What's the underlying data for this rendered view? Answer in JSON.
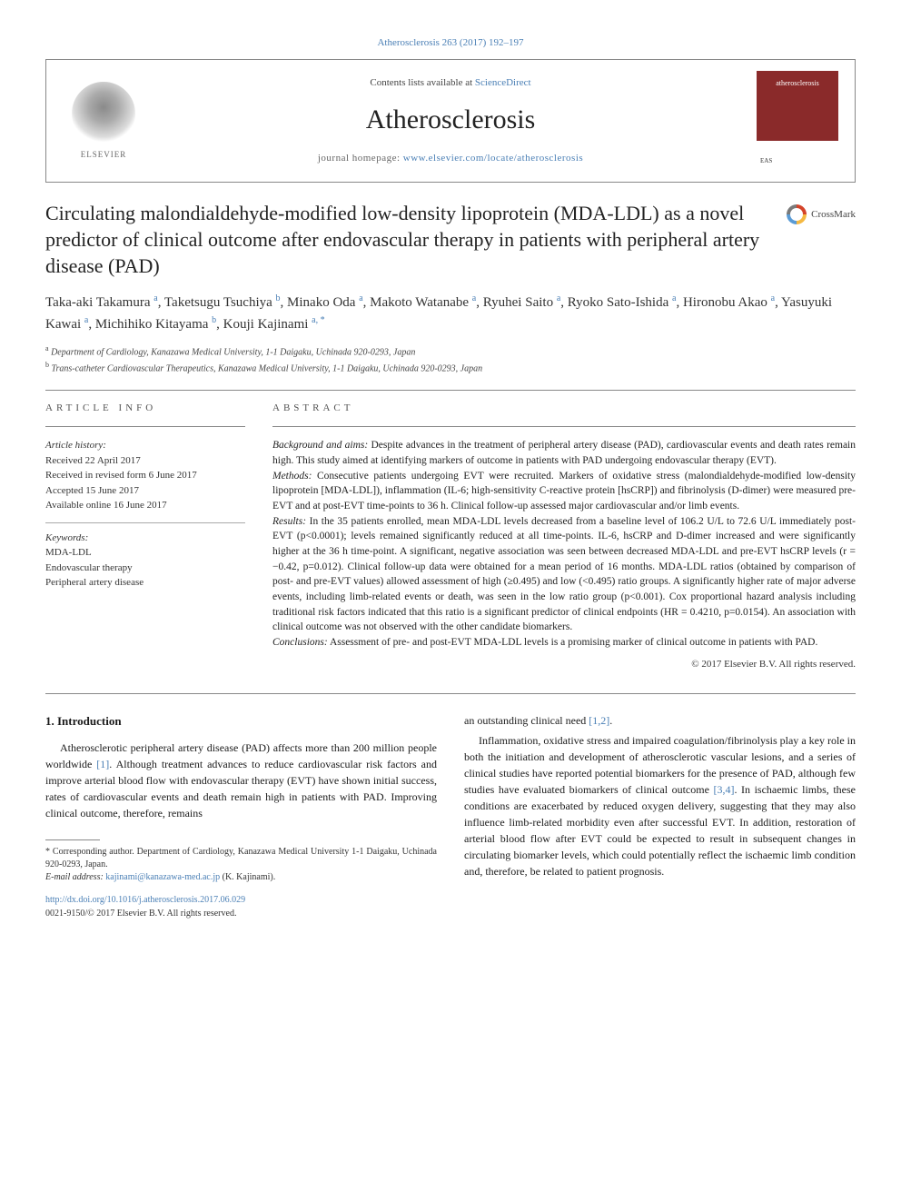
{
  "citation": {
    "text": "Atherosclerosis 263 (2017) 192–197",
    "color": "#4a7fb5"
  },
  "header": {
    "contents_prefix": "Contents lists available at ",
    "contents_link": "ScienceDirect",
    "journal": "Atherosclerosis",
    "homepage_prefix": "journal homepage: ",
    "homepage_link": "www.elsevier.com/locate/atherosclerosis",
    "publisher": "ELSEVIER",
    "cover_title": "atherosclerosis",
    "cover_footer": "EAS"
  },
  "crossmark": "CrossMark",
  "title": "Circulating malondialdehyde-modified low-density lipoprotein (MDA-LDL) as a novel predictor of clinical outcome after endovascular therapy in patients with peripheral artery disease (PAD)",
  "authors_html": "Taka-aki Takamura <sup>a</sup>, Taketsugu Tsuchiya <sup>b</sup>, Minako Oda <sup>a</sup>, Makoto Watanabe <sup>a</sup>, Ryuhei Saito <sup>a</sup>, Ryoko Sato-Ishida <sup>a</sup>, Hironobu Akao <sup>a</sup>, Yasuyuki Kawai <sup>a</sup>, Michihiko Kitayama <sup>b</sup>, Kouji Kajinami <sup>a, *</sup>",
  "affiliations": {
    "a": "Department of Cardiology, Kanazawa Medical University, 1-1 Daigaku, Uchinada 920-0293, Japan",
    "b": "Trans-catheter Cardiovascular Therapeutics, Kanazawa Medical University, 1-1 Daigaku, Uchinada 920-0293, Japan"
  },
  "article_info": {
    "label": "ARTICLE INFO",
    "history_heading": "Article history:",
    "received": "Received 22 April 2017",
    "revised": "Received in revised form 6 June 2017",
    "accepted": "Accepted 15 June 2017",
    "online": "Available online 16 June 2017",
    "keywords_heading": "Keywords:",
    "keywords": [
      "MDA-LDL",
      "Endovascular therapy",
      "Peripheral artery disease"
    ]
  },
  "abstract": {
    "label": "ABSTRACT",
    "background_head": "Background and aims:",
    "background": " Despite advances in the treatment of peripheral artery disease (PAD), cardiovascular events and death rates remain high. This study aimed at identifying markers of outcome in patients with PAD undergoing endovascular therapy (EVT).",
    "methods_head": "Methods:",
    "methods": " Consecutive patients undergoing EVT were recruited. Markers of oxidative stress (malondialdehyde-modified low-density lipoprotein [MDA-LDL]), inflammation (IL-6; high-sensitivity C-reactive protein [hsCRP]) and fibrinolysis (D-dimer) were measured pre-EVT and at post-EVT time-points to 36 h. Clinical follow-up assessed major cardiovascular and/or limb events.",
    "results_head": "Results:",
    "results": " In the 35 patients enrolled, mean MDA-LDL levels decreased from a baseline level of 106.2 U/L to 72.6 U/L immediately post-EVT (p<0.0001); levels remained significantly reduced at all time-points. IL-6, hsCRP and D-dimer increased and were significantly higher at the 36 h time-point. A significant, negative association was seen between decreased MDA-LDL and pre-EVT hsCRP levels (r = −0.42, p=0.012). Clinical follow-up data were obtained for a mean period of 16 months. MDA-LDL ratios (obtained by comparison of post- and pre-EVT values) allowed assessment of high (≥0.495) and low (<0.495) ratio groups. A significantly higher rate of major adverse events, including limb-related events or death, was seen in the low ratio group (p<0.001). Cox proportional hazard analysis including traditional risk factors indicated that this ratio is a significant predictor of clinical endpoints (HR = 0.4210, p=0.0154). An association with clinical outcome was not observed with the other candidate biomarkers.",
    "conclusions_head": "Conclusions:",
    "conclusions": " Assessment of pre- and post-EVT MDA-LDL levels is a promising marker of clinical outcome in patients with PAD.",
    "copyright": "© 2017 Elsevier B.V. All rights reserved."
  },
  "body": {
    "heading": "1. Introduction",
    "left_p1_a": "Atherosclerotic peripheral artery disease (PAD) affects more than 200 million people worldwide ",
    "left_cite1": "[1]",
    "left_p1_b": ". Although treatment advances to reduce cardiovascular risk factors and improve arterial blood flow with endovascular therapy (EVT) have shown initial success, rates of cardiovascular events and death remain high in patients with PAD. Improving clinical outcome, therefore, remains",
    "right_p1_a": "an outstanding clinical need ",
    "right_cite1": "[1,2]",
    "right_p1_b": ".",
    "right_p2_a": "Inflammation, oxidative stress and impaired coagulation/fibrinolysis play a key role in both the initiation and development of atherosclerotic vascular lesions, and a series of clinical studies have reported potential biomarkers for the presence of PAD, although few studies have evaluated biomarkers of clinical outcome ",
    "right_cite2": "[3,4]",
    "right_p2_b": ". In ischaemic limbs, these conditions are exacerbated by reduced oxygen delivery, suggesting that they may also influence limb-related morbidity even after successful EVT. In addition, restoration of arterial blood flow after EVT could be expected to result in subsequent changes in circulating biomarker levels, which could potentially reflect the ischaemic limb condition and, therefore, be related to patient prognosis."
  },
  "footnote": {
    "corresponding": "* Corresponding author. Department of Cardiology, Kanazawa Medical University 1-1 Daigaku, Uchinada 920-0293, Japan.",
    "email_label": "E-mail address: ",
    "email": "kajinami@kanazawa-med.ac.jp",
    "email_suffix": " (K. Kajinami)."
  },
  "doi": {
    "link": "http://dx.doi.org/10.1016/j.atherosclerosis.2017.06.029",
    "issn": "0021-9150/© 2017 Elsevier B.V. All rights reserved."
  },
  "colors": {
    "link": "#4a7fb5",
    "text": "#1a1a1a",
    "rule": "#888888",
    "cover_bg": "#8a2a2a"
  },
  "fonts": {
    "body_pt": 12,
    "title_pt": 22,
    "journal_pt": 30,
    "abstract_pt": 11.5,
    "small_pt": 11,
    "footnote_pt": 10
  }
}
